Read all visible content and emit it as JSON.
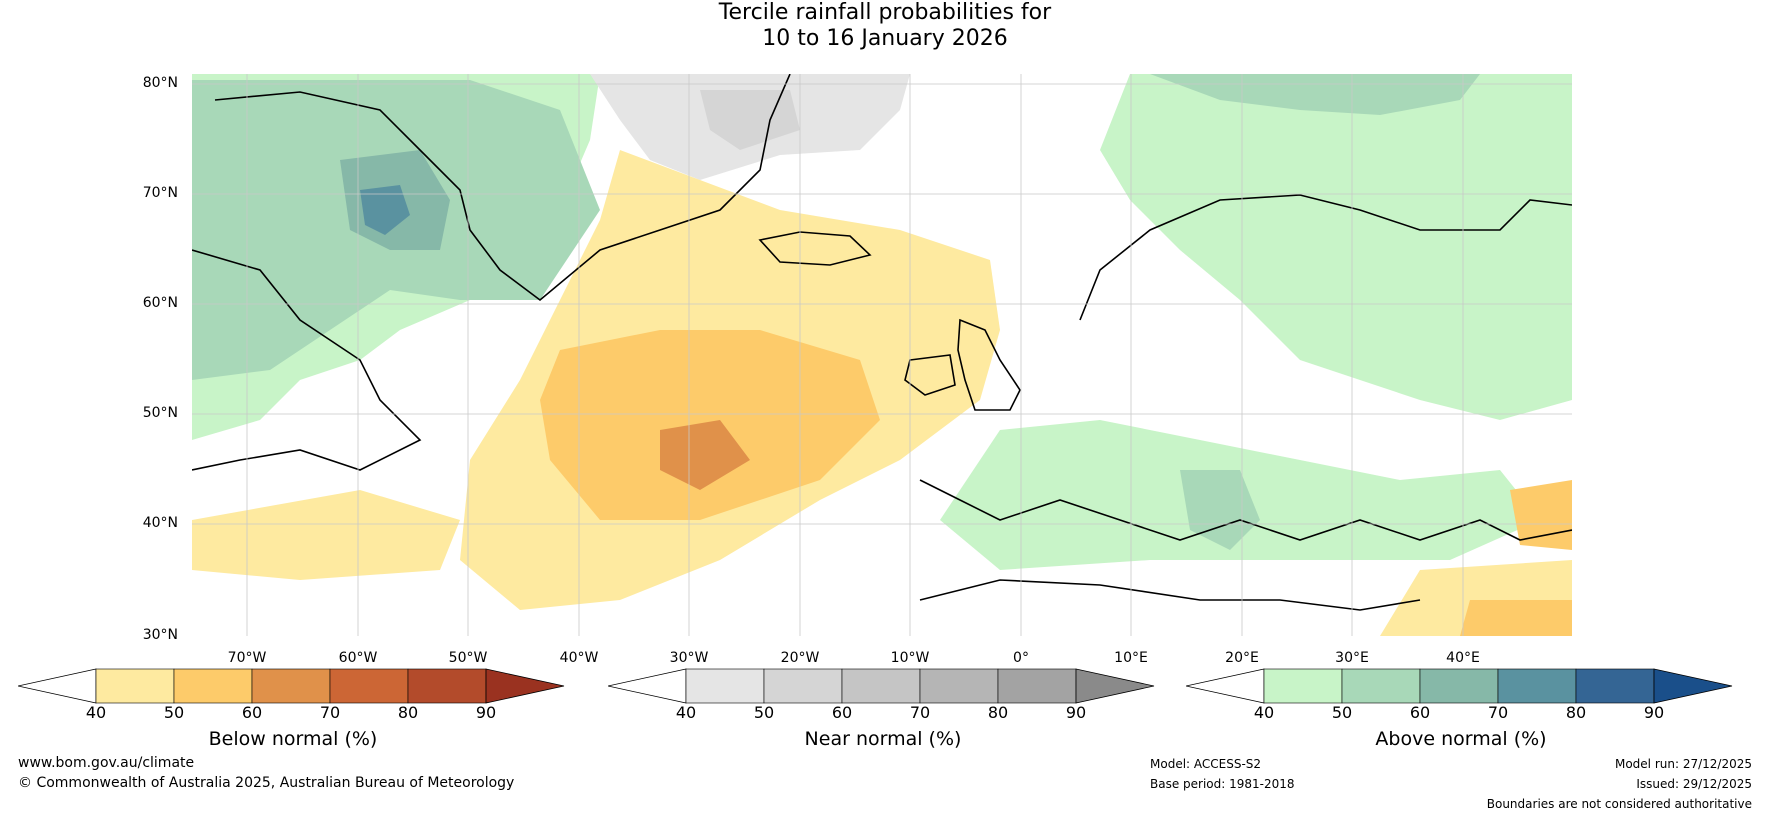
{
  "title": {
    "line1": "Tercile rainfall probabilities for",
    "line2": "10 to 16 January 2026"
  },
  "map": {
    "lat_labels": [
      "80°N",
      "70°N",
      "60°N",
      "50°N",
      "40°N",
      "30°N"
    ],
    "lon_labels": [
      "70°W",
      "60°W",
      "50°W",
      "40°W",
      "30°W",
      "20°W",
      "10°W",
      "0°",
      "10°E",
      "20°E",
      "30°E",
      "40°E"
    ]
  },
  "colorbars": [
    {
      "id": "below",
      "title": "Below normal (%)",
      "ticks": [
        "40",
        "50",
        "60",
        "70",
        "80",
        "90"
      ],
      "colors": [
        "#ffffff",
        "#feeaa0",
        "#fdcb6a",
        "#e0914a",
        "#cc6635",
        "#b34b2b",
        "#9a3220"
      ]
    },
    {
      "id": "near",
      "title": "Near normal (%)",
      "ticks": [
        "40",
        "50",
        "60",
        "70",
        "80",
        "90"
      ],
      "colors": [
        "#ffffff",
        "#e5e5e5",
        "#d5d5d5",
        "#c5c5c5",
        "#b5b5b5",
        "#a3a3a3",
        "#8a8a8a"
      ]
    },
    {
      "id": "above",
      "title": "Above normal (%)",
      "ticks": [
        "40",
        "50",
        "60",
        "70",
        "80",
        "90"
      ],
      "colors": [
        "#ffffff",
        "#c8f4c8",
        "#a8d8b8",
        "#86b8a8",
        "#5a92a0",
        "#346594",
        "#1a4f8a"
      ]
    }
  ],
  "footer": {
    "website": "www.bom.gov.au/climate",
    "copyright": "© Commonwealth of Australia 2025, Australian Bureau of Meteorology",
    "model": "Model: ACCESS-S2",
    "base_period": "Base period: 1981-2018",
    "model_run": "Model run: 27/12/2025",
    "issued": "Issued: 29/12/2025",
    "disclaimer": "Boundaries are not considered authoritative"
  }
}
